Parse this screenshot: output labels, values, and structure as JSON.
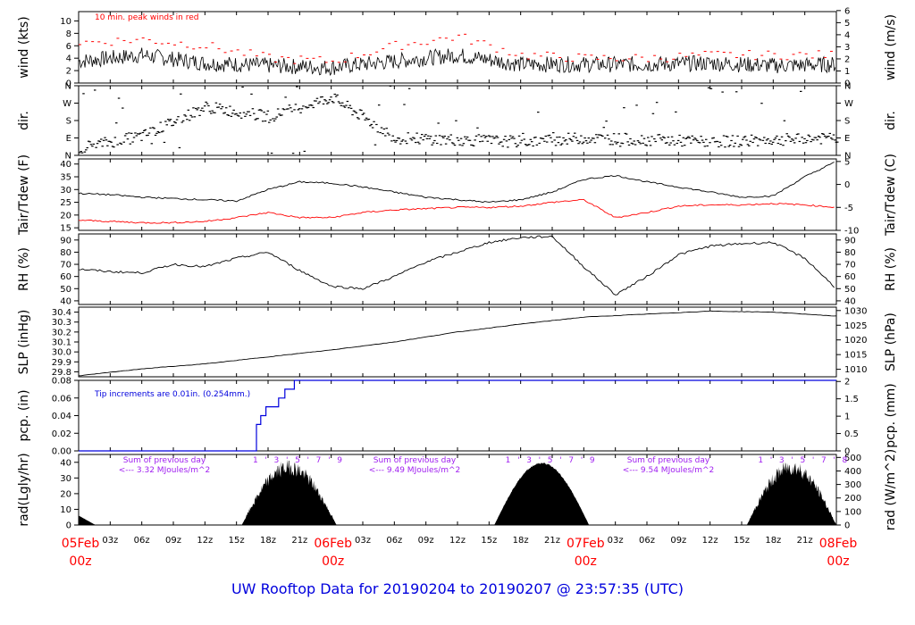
{
  "title": "UW Rooftop Data for 20190204  to  20190207 @ 23:57:35  (UTC)",
  "colors": {
    "red": "#ff0000",
    "blue": "#0000dd",
    "purple": "#a020f0",
    "black": "#000000"
  },
  "time_axis": {
    "hour_ticks": [
      "03z",
      "06z",
      "09z",
      "12z",
      "15z",
      "18z",
      "21z"
    ],
    "day_labels": [
      {
        "top": "05Feb",
        "bottom": "00z"
      },
      {
        "top": "06Feb",
        "bottom": "00z"
      },
      {
        "top": "07Feb",
        "bottom": "00z"
      },
      {
        "top": "08Feb",
        "bottom": "00z"
      }
    ]
  },
  "chart_data": [
    {
      "type": "line",
      "id": "wind",
      "ylabel": "wind (kts)",
      "ylabel2": "wind (m/s)",
      "yticks": [
        "0",
        "2",
        "4",
        "6",
        "8",
        "10"
      ],
      "yticks2": [
        "0",
        "1",
        "2",
        "3",
        "4",
        "5",
        "6"
      ],
      "ylim": [
        0,
        11.5
      ],
      "annotation": "10 min. peak winds in red",
      "x_hours": [
        0,
        6,
        12,
        18,
        24,
        30,
        36,
        42,
        48,
        54,
        60,
        66,
        72
      ],
      "series": [
        {
          "values": [
            3.5,
            4.5,
            3.2,
            2.8,
            2.5,
            3.5,
            4.5,
            3.0,
            3.0,
            3.0,
            3.2,
            2.8,
            3.0
          ]
        },
        {
          "values": [
            6.5,
            7.0,
            6.0,
            4.0,
            3.5,
            6.0,
            7.5,
            4.5,
            4.0,
            4.0,
            4.5,
            4.5,
            4.5
          ]
        }
      ]
    },
    {
      "type": "scatter",
      "id": "dir",
      "ylabel": "dir.",
      "ylabel2": "dir.",
      "yticks": [
        "N",
        "E",
        "S",
        "W",
        "N"
      ],
      "x_hours": [
        0,
        6,
        12,
        18,
        24,
        30,
        36,
        42,
        48,
        54,
        60,
        66,
        72
      ],
      "values": [
        40,
        100,
        250,
        200,
        300,
        90,
        80,
        70,
        90,
        80,
        70,
        80,
        90
      ]
    },
    {
      "type": "line",
      "id": "temp",
      "ylabel": "Tair/Tdew (F)",
      "ylabel2": "Tair/Tdew (C)",
      "yticks": [
        "15",
        "20",
        "25",
        "30",
        "35",
        "40"
      ],
      "yticks2": [
        "-10",
        "-5",
        "0",
        "5"
      ],
      "ylim": [
        14,
        42
      ],
      "x_hours": [
        0,
        3,
        6,
        9,
        12,
        15,
        18,
        21,
        24,
        27,
        30,
        33,
        36,
        39,
        42,
        45,
        48,
        51,
        54,
        57,
        60,
        63,
        66,
        69,
        72
      ],
      "series": [
        {
          "name": "Tair",
          "values": [
            28.5,
            28,
            27,
            26.5,
            26,
            25.5,
            30,
            33,
            32.5,
            31,
            29,
            27,
            26,
            25,
            26,
            29,
            34,
            35.5,
            33,
            31,
            29,
            27,
            27.5,
            35,
            41
          ]
        },
        {
          "name": "Tdew",
          "values": [
            18,
            17.5,
            17,
            17,
            17.5,
            19,
            21,
            19,
            19,
            21,
            22,
            22.5,
            23,
            23,
            23.5,
            25,
            26,
            19,
            21,
            23.5,
            24,
            24,
            24.5,
            24,
            23
          ]
        }
      ]
    },
    {
      "type": "line",
      "id": "rh",
      "ylabel": "RH (%)",
      "ylabel2": "RH (%)",
      "yticks": [
        "40",
        "50",
        "60",
        "70",
        "80",
        "90"
      ],
      "yticks2": [
        "40",
        "50",
        "60",
        "70",
        "80",
        "90"
      ],
      "ylim": [
        37,
        95
      ],
      "x_hours": [
        0,
        3,
        6,
        9,
        12,
        15,
        18,
        21,
        24,
        27,
        30,
        33,
        36,
        39,
        42,
        45,
        48,
        51,
        54,
        57,
        60,
        63,
        66,
        69,
        72
      ],
      "values": [
        66,
        64,
        63,
        70,
        68,
        75,
        80,
        65,
        52,
        50,
        60,
        72,
        80,
        88,
        92,
        93,
        68,
        45,
        60,
        78,
        85,
        87,
        88,
        75,
        50
      ]
    },
    {
      "type": "line",
      "id": "slp",
      "ylabel": "SLP (inHg)",
      "ylabel2": "SLP (hPa)",
      "yticks": [
        "29.8",
        "29.9",
        "30.0",
        "30.1",
        "30.2",
        "30.3",
        "30.4"
      ],
      "yticks2": [
        "1010",
        "1015",
        "1020",
        "1025",
        "1030"
      ],
      "ylim": [
        29.75,
        30.45
      ],
      "x_hours": [
        0,
        6,
        12,
        18,
        24,
        30,
        36,
        42,
        48,
        54,
        60,
        66,
        72
      ],
      "values": [
        29.76,
        29.83,
        29.88,
        29.95,
        30.02,
        30.1,
        30.2,
        30.28,
        30.35,
        30.38,
        30.41,
        30.4,
        30.36
      ]
    },
    {
      "type": "line",
      "id": "pcp",
      "ylabel": "pcp. (in)",
      "ylabel2": "pcp. (mm)",
      "yticks": [
        "0.00",
        "0.02",
        "0.04",
        "0.06",
        "0.08"
      ],
      "yticks2": [
        "0",
        "0.5",
        "1",
        "1.5",
        "2"
      ],
      "ylim": [
        0,
        0.08
      ],
      "annotation": "Tip increments are 0.01in. (0.254mm.)",
      "x_hours": [
        0,
        16.8,
        16.9,
        17.3,
        17.8,
        19.0,
        19.6,
        20.5,
        72
      ],
      "values": [
        0.0,
        0.0,
        0.03,
        0.04,
        0.05,
        0.06,
        0.07,
        0.08,
        0.08
      ]
    },
    {
      "type": "area",
      "id": "rad",
      "ylabel": "rad(Lgly/hr)",
      "ylabel2": "rad (W/m^2)",
      "yticks": [
        "0",
        "10",
        "20",
        "30",
        "40"
      ],
      "yticks2": [
        "0",
        "100",
        "200",
        "300",
        "400",
        "500"
      ],
      "ylim": [
        0,
        45
      ],
      "annotations": [
        {
          "line1": "Sum of previous day",
          "line2": "<--- 3.32 MJoules/m^2"
        },
        {
          "line1": "Sum of previous day",
          "line2": "<--- 9.49 MJoules/m^2"
        },
        {
          "line1": "Sum of previous day",
          "line2": "<--- 9.54 MJoules/m^2"
        }
      ],
      "hour_marks": [
        "1",
        "3",
        "5",
        "7",
        "9"
      ],
      "hour_marks3": [
        "1",
        "3",
        "5",
        "7",
        "8"
      ],
      "days": [
        {
          "start_hour": 15.5,
          "end_hour": 24.5,
          "peak": 42
        },
        {
          "start_hour": 39.5,
          "end_hour": 48.5,
          "peak": 40
        },
        {
          "start_hour": 63.5,
          "end_hour": 72,
          "peak": 42
        }
      ],
      "start_bump": 6
    }
  ]
}
